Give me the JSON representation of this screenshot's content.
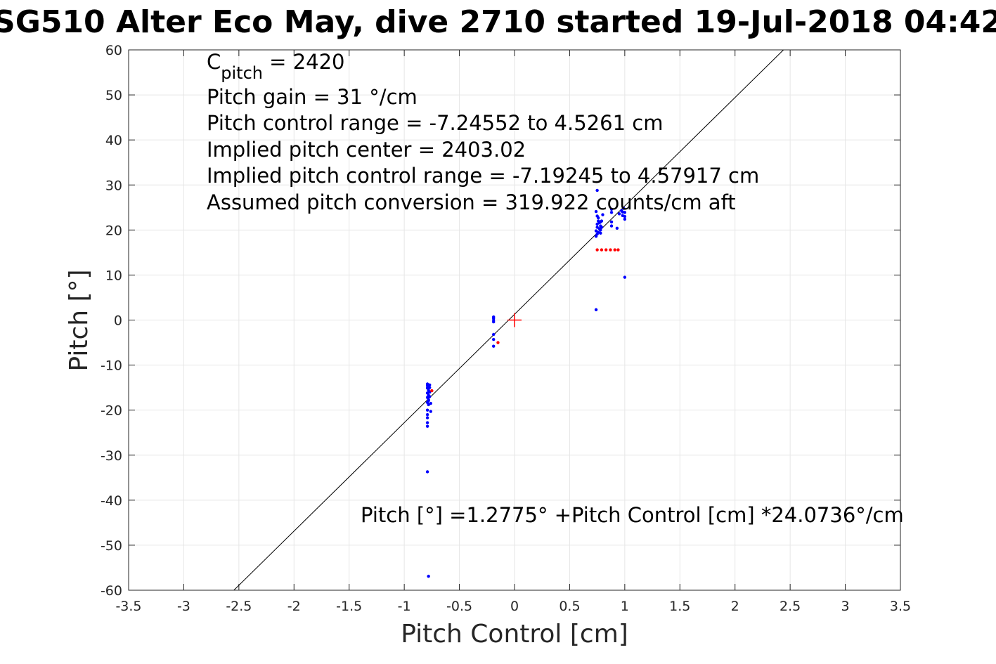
{
  "chart_data": {
    "type": "scatter",
    "title": "SG510 Alter Eco May, dive 2710 started 19-Jul-2018 04:42",
    "xlabel": "Pitch Control [cm]",
    "ylabel": "Pitch [°]",
    "xlim": [
      -3.5,
      3.5
    ],
    "ylim": [
      -60,
      60
    ],
    "xticks": [
      -3.5,
      -3,
      -2.5,
      -2,
      -1.5,
      -1,
      -0.5,
      0,
      0.5,
      1,
      1.5,
      2,
      2.5,
      3,
      3.5
    ],
    "yticks": [
      -60,
      -50,
      -40,
      -30,
      -20,
      -10,
      0,
      10,
      20,
      30,
      40,
      50,
      60
    ],
    "xtick_labels": [
      "-3.5",
      "-3",
      "-2.5",
      "-2",
      "-1.5",
      "-1",
      "-0.5",
      "0",
      "0.5",
      "1",
      "1.5",
      "2",
      "2.5",
      "3",
      "3.5"
    ],
    "ytick_labels": [
      "-60",
      "-50",
      "-40",
      "-30",
      "-20",
      "-10",
      "0",
      "10",
      "20",
      "30",
      "40",
      "50",
      "60"
    ],
    "grid": true,
    "annotations": {
      "cpitch_base": "C",
      "cpitch_sub": "pitch",
      "cpitch_rest": " = 2420",
      "lines": [
        "Pitch gain = 31 °/cm",
        "Pitch control range = -7.24552 to 4.5261 cm",
        "Implied pitch center = 2403.02",
        "Implied pitch control range = -7.19245 to 4.57917 cm",
        "Assumed pitch conversion = 319.922 counts/cm aft"
      ],
      "fit_equation": "Pitch [°] =1.2775° +Pitch Control [cm] *24.0736°/cm"
    },
    "fit_line": {
      "intercept": 1.2775,
      "slope": 24.0736,
      "color": "#000000"
    },
    "center_marker": {
      "x": 0,
      "y": 0,
      "color": "#ff0000"
    },
    "series": [
      {
        "color": "#0000ff",
        "points": [
          [
            -0.79,
            -14.2
          ],
          [
            -0.79,
            -14.6
          ],
          [
            -0.79,
            -15.1
          ],
          [
            -0.78,
            -15.6
          ],
          [
            -0.79,
            -16.2
          ],
          [
            -0.78,
            -16.7
          ],
          [
            -0.79,
            -17.2
          ],
          [
            -0.78,
            -17.7
          ],
          [
            -0.79,
            -18.3
          ],
          [
            -0.78,
            -18.8
          ],
          [
            -0.79,
            -20.0
          ],
          [
            -0.79,
            -21.0
          ],
          [
            -0.79,
            -21.7
          ],
          [
            -0.79,
            -22.8
          ],
          [
            -0.79,
            -23.6
          ],
          [
            -0.77,
            -14.4
          ],
          [
            -0.77,
            -15.0
          ],
          [
            -0.77,
            -16.0
          ],
          [
            -0.77,
            -17.0
          ],
          [
            -0.78,
            -17.9
          ],
          [
            -0.76,
            -18.5
          ],
          [
            -0.76,
            -20.3
          ],
          [
            -0.79,
            -33.7
          ],
          [
            -0.78,
            -56.9
          ],
          [
            -0.19,
            0.7
          ],
          [
            -0.19,
            0.4
          ],
          [
            -0.19,
            0.0
          ],
          [
            -0.19,
            -0.4
          ],
          [
            -0.19,
            -3.2
          ],
          [
            -0.19,
            -4.3
          ],
          [
            -0.19,
            -5.8
          ],
          [
            0.75,
            28.8
          ],
          [
            0.74,
            24.1
          ],
          [
            0.75,
            23.1
          ],
          [
            0.76,
            22.0
          ],
          [
            0.75,
            21.3
          ],
          [
            0.75,
            20.6
          ],
          [
            0.74,
            19.8
          ],
          [
            0.75,
            19.1
          ],
          [
            0.74,
            18.6
          ],
          [
            0.76,
            22.7
          ],
          [
            0.77,
            21.6
          ],
          [
            0.77,
            20.3
          ],
          [
            0.76,
            19.5
          ],
          [
            0.78,
            21.8
          ],
          [
            0.78,
            20.9
          ],
          [
            0.78,
            20.0
          ],
          [
            0.78,
            19.3
          ],
          [
            0.79,
            22.0
          ],
          [
            0.79,
            20.6
          ],
          [
            0.8,
            23.4
          ],
          [
            0.88,
            24.6
          ],
          [
            0.88,
            23.9
          ],
          [
            0.88,
            21.8
          ],
          [
            0.88,
            20.9
          ],
          [
            0.93,
            20.4
          ],
          [
            0.95,
            23.6
          ],
          [
            0.97,
            24.3
          ],
          [
            0.98,
            24.0
          ],
          [
            0.98,
            23.2
          ],
          [
            0.99,
            24.8
          ],
          [
            1.0,
            23.9
          ],
          [
            1.0,
            23.0
          ],
          [
            1.0,
            22.4
          ],
          [
            1.0,
            9.5
          ],
          [
            0.74,
            2.3
          ]
        ]
      },
      {
        "color": "#ff0000",
        "points": [
          [
            0.75,
            15.6
          ],
          [
            0.79,
            15.6
          ],
          [
            0.83,
            15.6
          ],
          [
            0.87,
            15.6
          ],
          [
            0.91,
            15.6
          ],
          [
            0.94,
            15.6
          ],
          [
            -0.75,
            -15.7
          ],
          [
            -0.15,
            -5.0
          ]
        ]
      }
    ]
  }
}
